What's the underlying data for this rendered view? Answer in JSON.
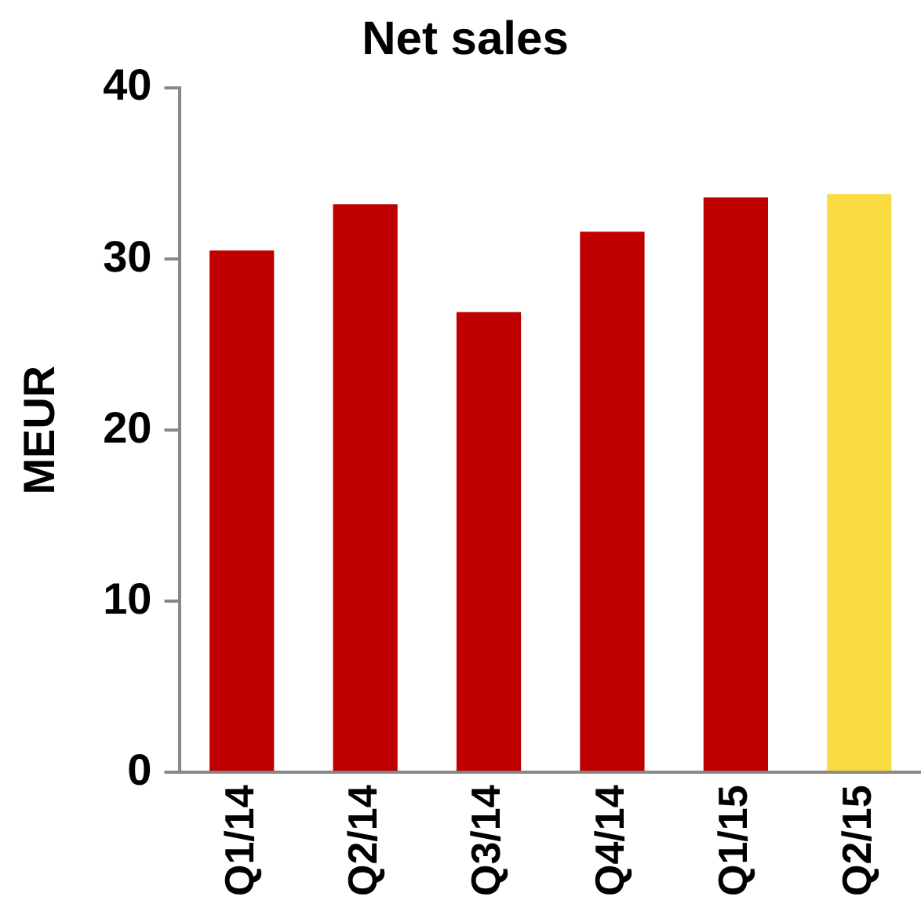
{
  "chart_data": {
    "type": "bar",
    "title": "Net sales",
    "ylabel": "MEUR",
    "categories": [
      "Q1/14",
      "Q2/14",
      "Q3/14",
      "Q4/14",
      "Q1/15",
      "Q2/15"
    ],
    "values": [
      30.5,
      33.2,
      26.9,
      31.6,
      33.6,
      33.8
    ],
    "colors": [
      "#c00000",
      "#c00000",
      "#c00000",
      "#c00000",
      "#c00000",
      "#fadc41"
    ],
    "ylim": [
      0,
      40
    ],
    "yticks": [
      0,
      10,
      20,
      30,
      40
    ],
    "grid": false,
    "legend": false
  }
}
